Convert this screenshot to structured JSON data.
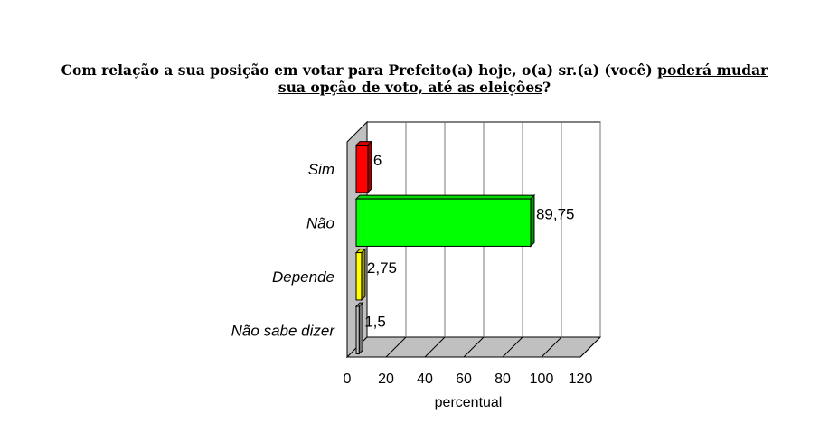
{
  "title": {
    "part1": "Com relação a sua posição em votar para Prefeito(a) hoje, o(a) sr.(a) (você) ",
    "part2": "poderá mudar",
    "part3": " sua opção de voto, até as eleições",
    "part4": "?"
  },
  "chart_data": {
    "type": "bar",
    "orientation": "horizontal",
    "style": "3d",
    "categories": [
      "Sim",
      "Não",
      "Depende",
      "Não sabe dizer"
    ],
    "values": [
      6,
      89.75,
      2.75,
      1.5
    ],
    "value_labels": [
      "6",
      "89,75",
      "2,75",
      "1,5"
    ],
    "colors": [
      "#ff0000",
      "#00ff00",
      "#ffff00",
      "#c0c0c0"
    ],
    "xlabel": "percentual",
    "xlim": [
      0,
      120
    ],
    "xticks": [
      0,
      20,
      40,
      60,
      80,
      100,
      120
    ],
    "grid": true,
    "legend": "none"
  }
}
